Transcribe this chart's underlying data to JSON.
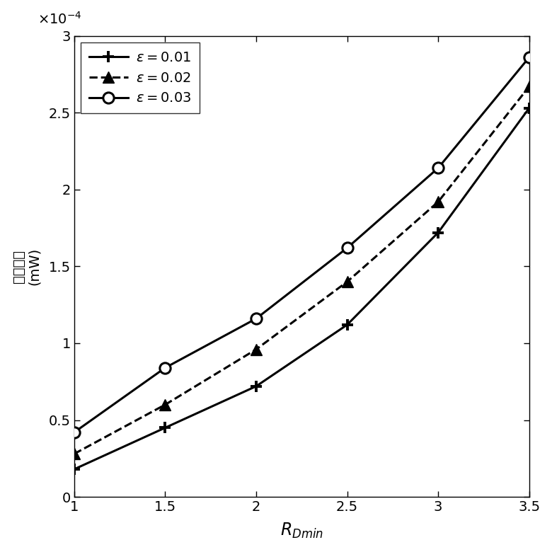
{
  "x": [
    1.0,
    1.5,
    2.0,
    2.5,
    3.0,
    3.5
  ],
  "y_eps001": [
    1.8e-05,
    4.5e-05,
    7.2e-05,
    0.000112,
    0.000172,
    0.000253
  ],
  "y_eps002": [
    2.8e-05,
    6e-05,
    9.6e-05,
    0.00014,
    0.000192,
    0.000267
  ],
  "y_eps003": [
    4.2e-05,
    8.4e-05,
    0.000116,
    0.000162,
    0.000214,
    0.000286
  ],
  "xlabel": "$R_{Dmin}$",
  "ylabel_chinese": "传输功率",
  "ylabel_unit": "(mW)",
  "legend_labels": [
    "$\\epsilon = 0.01$",
    "$\\epsilon = 0.02$",
    "$\\epsilon = 0.03$"
  ],
  "xlim": [
    1.0,
    3.5
  ],
  "ylim": [
    0,
    0.0003
  ],
  "xticks": [
    1.0,
    1.5,
    2.0,
    2.5,
    3.0,
    3.5
  ],
  "ytick_values": [
    0,
    5e-05,
    0.0001,
    0.00015,
    0.0002,
    0.00025,
    0.0003
  ],
  "ytick_labels": [
    "0",
    "0.5",
    "1",
    "1.5",
    "2",
    "2.5",
    "3"
  ],
  "xtick_labels": [
    "1",
    "1.5",
    "2",
    "2.5",
    "3",
    "3.5"
  ],
  "line_color": "#000000",
  "linewidth": 2.2,
  "markersize": 11,
  "figsize": [
    7.8,
    7.8
  ],
  "dpi": 100
}
